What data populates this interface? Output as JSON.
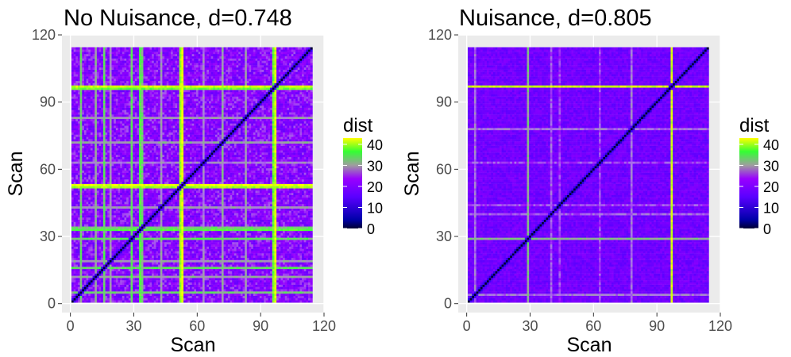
{
  "chart_data": [
    {
      "type": "heatmap",
      "title": "No Nuisance, d=0.748",
      "xlabel": "Scan",
      "ylabel": "Scan",
      "xlim": [
        -4,
        120
      ],
      "ylim": [
        -4,
        120
      ],
      "xticks": [
        "0",
        "30",
        "60",
        "90",
        "120"
      ],
      "yticks": [
        "0",
        "30",
        "60",
        "90",
        "120"
      ],
      "n_scans": 114,
      "diagonal_value": 0,
      "background_dist_range": [
        17,
        26
      ],
      "highlight_scans": [
        {
          "scan": 5,
          "dist": 33
        },
        {
          "scan": 12,
          "dist": 31
        },
        {
          "scan": 16,
          "dist": 34
        },
        {
          "scan": 19,
          "dist": 30
        },
        {
          "scan": 29,
          "dist": 34
        },
        {
          "scan": 33,
          "dist": 36
        },
        {
          "scan": 34,
          "dist": 33
        },
        {
          "scan": 43,
          "dist": 30
        },
        {
          "scan": 52,
          "dist": 40
        },
        {
          "scan": 53,
          "dist": 43
        },
        {
          "scan": 63,
          "dist": 29
        },
        {
          "scan": 72,
          "dist": 31
        },
        {
          "scan": 83,
          "dist": 30
        },
        {
          "scan": 96,
          "dist": 38
        },
        {
          "scan": 97,
          "dist": 42
        }
      ],
      "legend": {
        "title": "dist",
        "ticks": [
          "0",
          "10",
          "20",
          "30",
          "40"
        ],
        "range": [
          0,
          43
        ]
      }
    },
    {
      "type": "heatmap",
      "title": "Nuisance, d=0.805",
      "xlabel": "Scan",
      "ylabel": "Scan",
      "xlim": [
        -4,
        120
      ],
      "ylim": [
        -4,
        120
      ],
      "xticks": [
        "0",
        "30",
        "60",
        "90",
        "120"
      ],
      "yticks": [
        "0",
        "30",
        "60",
        "90",
        "120"
      ],
      "n_scans": 114,
      "diagonal_value": 0,
      "background_dist_range": [
        16,
        21
      ],
      "highlight_scans": [
        {
          "scan": 4,
          "dist": 28
        },
        {
          "scan": 29,
          "dist": 32
        },
        {
          "scan": 40,
          "dist": 27
        },
        {
          "scan": 44,
          "dist": 26
        },
        {
          "scan": 63,
          "dist": 26
        },
        {
          "scan": 78,
          "dist": 28
        },
        {
          "scan": 97,
          "dist": 42
        }
      ],
      "legend": {
        "title": "dist",
        "ticks": [
          "0",
          "10",
          "20",
          "30",
          "40"
        ],
        "range": [
          0,
          43
        ]
      }
    }
  ]
}
